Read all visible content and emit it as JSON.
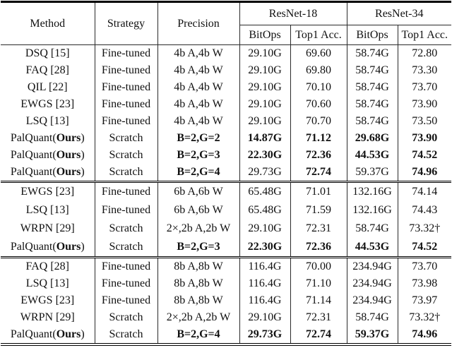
{
  "page": {
    "background": "#ffffff",
    "text_color": "#111111",
    "rule_color": "#000000"
  },
  "table": {
    "header": {
      "method": "Method",
      "strategy": "Strategy",
      "precision": "Precision",
      "resnet18": "ResNet-18",
      "resnet34": "ResNet-34",
      "sub": [
        "BitOps",
        "Top1 Acc.",
        "BitOps",
        "Top1 Acc."
      ]
    },
    "method_bold_token": "Ours",
    "groups": [
      {
        "rows": [
          {
            "method": "DSQ [15]",
            "ours": false,
            "strategy": "Fine-tuned",
            "cells": [
              "4b A,4b W",
              "29.10G",
              "69.60",
              "58.74G",
              "72.80"
            ],
            "bold": [
              false,
              false,
              false,
              false,
              false
            ]
          },
          {
            "method": "FAQ [28]",
            "ours": false,
            "strategy": "Fine-tuned",
            "cells": [
              "4b A,4b W",
              "29.10G",
              "69.80",
              "58.74G",
              "73.30"
            ],
            "bold": [
              false,
              false,
              false,
              false,
              false
            ]
          },
          {
            "method": "QIL [22]",
            "ours": false,
            "strategy": "Fine-tuned",
            "cells": [
              "4b A,4b W",
              "29.10G",
              "70.10",
              "58.74G",
              "73.70"
            ],
            "bold": [
              false,
              false,
              false,
              false,
              false
            ]
          },
          {
            "method": "EWGS [23]",
            "ours": false,
            "strategy": "Fine-tuned",
            "cells": [
              "4b A,4b W",
              "29.10G",
              "70.60",
              "58.74G",
              "73.90"
            ],
            "bold": [
              false,
              false,
              false,
              false,
              false
            ]
          },
          {
            "method": "LSQ [13]",
            "ours": false,
            "strategy": "Fine-tuned",
            "cells": [
              "4b A,4b W",
              "29.10G",
              "70.70",
              "58.74G",
              "73.50"
            ],
            "bold": [
              false,
              false,
              false,
              false,
              false
            ]
          },
          {
            "method": "PalQuant(Ours)",
            "ours": true,
            "strategy": "Scratch",
            "cells": [
              "B=2,G=2",
              "14.87G",
              "71.12",
              "29.68G",
              "73.90"
            ],
            "bold": [
              true,
              true,
              true,
              true,
              true
            ]
          },
          {
            "method": "PalQuant(Ours)",
            "ours": true,
            "strategy": "Scratch",
            "cells": [
              "B=2,G=3",
              "22.30G",
              "72.36",
              "44.53G",
              "74.52"
            ],
            "bold": [
              true,
              true,
              true,
              true,
              true
            ]
          },
          {
            "method": "PalQuant(Ours)",
            "ours": true,
            "strategy": "Scratch",
            "cells": [
              "B=2,G=4",
              "29.73G",
              "72.74",
              "59.37G",
              "74.96"
            ],
            "bold": [
              true,
              false,
              true,
              false,
              true
            ]
          }
        ]
      },
      {
        "rows": [
          {
            "method": "EWGS [23]",
            "ours": false,
            "strategy": "Fine-tuned",
            "cells": [
              "6b A,6b W",
              "65.48G",
              "71.01",
              "132.16G",
              "74.14"
            ],
            "bold": [
              false,
              false,
              false,
              false,
              false
            ]
          },
          {
            "method": "LSQ [13]",
            "ours": false,
            "strategy": "Fine-tuned",
            "cells": [
              "6b A,6b W",
              "65.48G",
              "71.59",
              "132.16G",
              "74.43"
            ],
            "bold": [
              false,
              false,
              false,
              false,
              false
            ]
          },
          {
            "method": "WRPN [29]",
            "ours": false,
            "strategy": "Scratch",
            "cells": [
              "2×,2b A,2b W",
              "29.10G",
              "72.31",
              "58.74G",
              "73.32†"
            ],
            "bold": [
              false,
              false,
              false,
              false,
              false
            ]
          },
          {
            "method": "PalQuant(Ours)",
            "ours": true,
            "strategy": "Scratch",
            "cells": [
              "B=2,G=3",
              "22.30G",
              "72.36",
              "44.53G",
              "74.52"
            ],
            "bold": [
              true,
              true,
              true,
              true,
              true
            ]
          }
        ]
      },
      {
        "rows": [
          {
            "method": "FAQ [28]",
            "ours": false,
            "strategy": "Fine-tuned",
            "cells": [
              "8b A,8b W",
              "116.4G",
              "70.00",
              "234.94G",
              "73.70"
            ],
            "bold": [
              false,
              false,
              false,
              false,
              false
            ]
          },
          {
            "method": "LSQ [13]",
            "ours": false,
            "strategy": "Fine-tuned",
            "cells": [
              "8b A,8b W",
              "116.4G",
              "71.10",
              "234.94G",
              "73.98"
            ],
            "bold": [
              false,
              false,
              false,
              false,
              false
            ]
          },
          {
            "method": "EWGS [23]",
            "ours": false,
            "strategy": "Fine-tuned",
            "cells": [
              "8b A,8b W",
              "116.4G",
              "71.14",
              "234.94G",
              "73.97"
            ],
            "bold": [
              false,
              false,
              false,
              false,
              false
            ]
          },
          {
            "method": "WRPN [29]",
            "ours": false,
            "strategy": "Scratch",
            "cells": [
              "2×,2b A,2b W",
              "29.10G",
              "72.31",
              "58.74G",
              "73.32†"
            ],
            "bold": [
              false,
              false,
              false,
              false,
              false
            ]
          },
          {
            "method": "PalQuant(Ours)",
            "ours": true,
            "strategy": "Scratch",
            "cells": [
              "B=2,G=4",
              "29.73G",
              "72.74",
              "59.37G",
              "74.96"
            ],
            "bold": [
              true,
              true,
              true,
              true,
              true
            ]
          }
        ]
      }
    ]
  }
}
